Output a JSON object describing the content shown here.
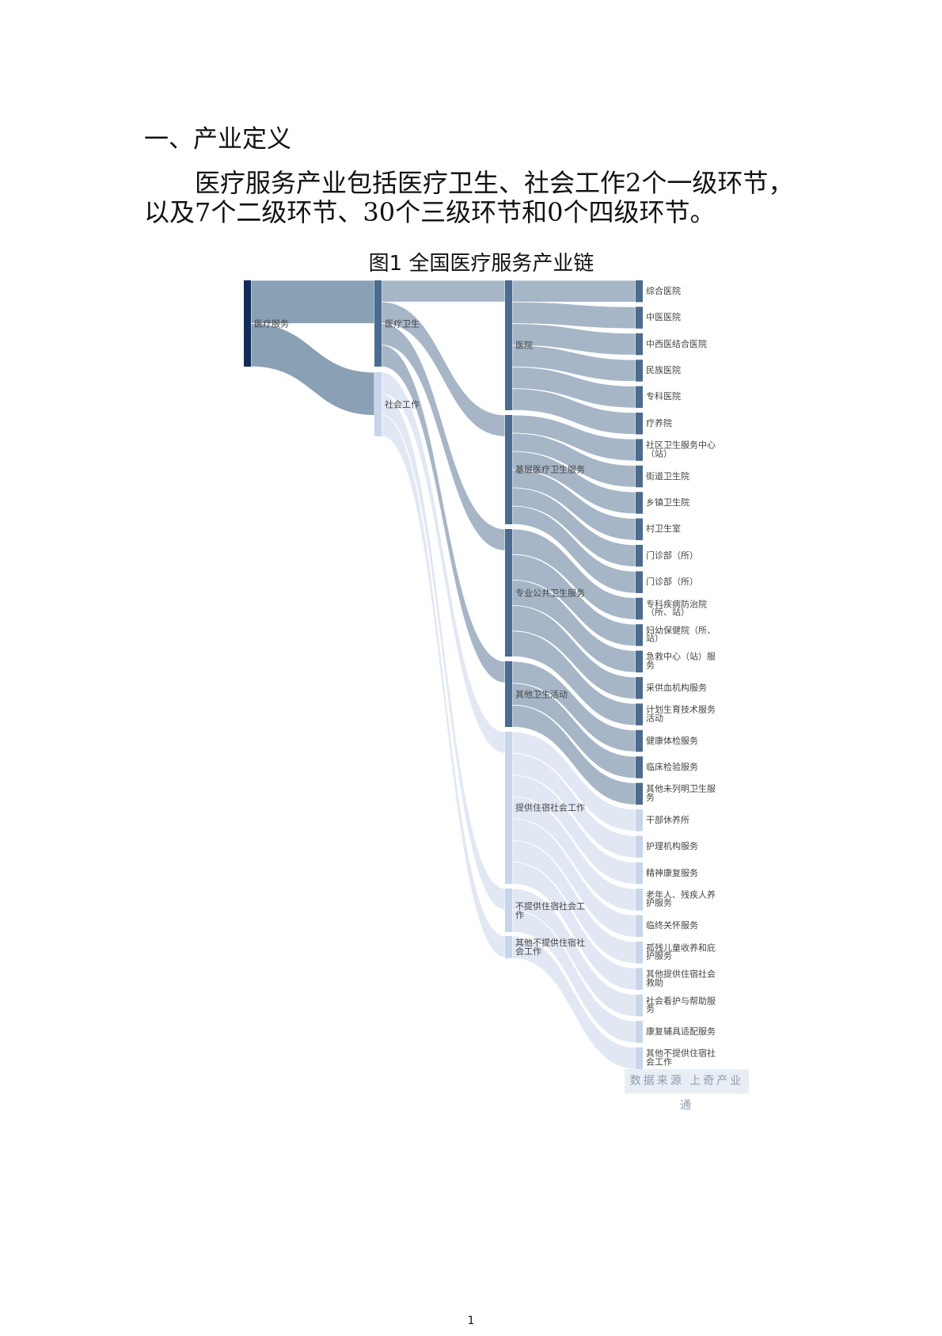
{
  "document": {
    "heading": "一、产业定义",
    "paragraph_line1": "医疗服务产业包括医疗卫生、社会工作2个一级环节，",
    "paragraph_line2": "以及7个二级环节、30个三级环节和0个四级环节。",
    "page_number": "1"
  },
  "chart_data": {
    "type": "sankey",
    "title": "图1 全国医疗服务产业链",
    "source": "数据来源 上奇产业通",
    "colors": {
      "root_node": "#0f2d5c",
      "medical_node": "#4b6c90",
      "social_node": "#c7d6ea",
      "root_flow": "#8aa0b4",
      "medical_flow": "#a6b6c7",
      "social_flow": "#e1e8f4"
    },
    "nodes": [
      {
        "name": "医疗服务",
        "level": 0,
        "parent": null
      },
      {
        "name": "医疗卫生",
        "level": 1,
        "parent": "医疗服务"
      },
      {
        "name": "社会工作",
        "level": 1,
        "parent": "医疗服务"
      },
      {
        "name": "医院",
        "level": 2,
        "parent": "医疗卫生"
      },
      {
        "name": "基层医疗卫生服务",
        "level": 2,
        "parent": "医疗卫生"
      },
      {
        "name": "专业公共卫生服务",
        "level": 2,
        "parent": "医疗卫生"
      },
      {
        "name": "其他卫生活动",
        "level": 2,
        "parent": "医疗卫生"
      },
      {
        "name": "提供住宿社会工作",
        "level": 2,
        "parent": "社会工作"
      },
      {
        "name": "不提供住宿社会工作",
        "level": 2,
        "parent": "社会工作"
      },
      {
        "name": "其他不提供住宿社会工作",
        "level": 2,
        "parent": "社会工作"
      },
      {
        "name": "综合医院",
        "level": 3,
        "parent": "医院"
      },
      {
        "name": "中医医院",
        "level": 3,
        "parent": "医院"
      },
      {
        "name": "中西医结合医院",
        "level": 3,
        "parent": "医院"
      },
      {
        "name": "民族医院",
        "level": 3,
        "parent": "医院"
      },
      {
        "name": "专科医院",
        "level": 3,
        "parent": "医院"
      },
      {
        "name": "疗养院",
        "level": 3,
        "parent": "医院"
      },
      {
        "name": "社区卫生服务中心（站）",
        "level": 3,
        "parent": "基层医疗卫生服务"
      },
      {
        "name": "街道卫生院",
        "level": 3,
        "parent": "基层医疗卫生服务"
      },
      {
        "name": "乡镇卫生院",
        "level": 3,
        "parent": "基层医疗卫生服务"
      },
      {
        "name": "村卫生室",
        "level": 3,
        "parent": "基层医疗卫生服务"
      },
      {
        "name": "门诊部（所）",
        "level": 3,
        "parent": "基层医疗卫生服务"
      },
      {
        "name": "门诊部（所）",
        "level": 3,
        "parent": "基层医疗卫生服务"
      },
      {
        "name": "专科疾病防治院（所、站）",
        "level": 3,
        "parent": "专业公共卫生服务"
      },
      {
        "name": "妇幼保健院（所、站）",
        "level": 3,
        "parent": "专业公共卫生服务"
      },
      {
        "name": "急救中心（站）服务",
        "level": 3,
        "parent": "专业公共卫生服务"
      },
      {
        "name": "采供血机构服务",
        "level": 3,
        "parent": "专业公共卫生服务"
      },
      {
        "name": "计划生育技术服务活动",
        "level": 3,
        "parent": "专业公共卫生服务"
      },
      {
        "name": "健康体检服务",
        "level": 3,
        "parent": "其他卫生活动"
      },
      {
        "name": "临床检验服务",
        "level": 3,
        "parent": "其他卫生活动"
      },
      {
        "name": "其他未列明卫生服务",
        "level": 3,
        "parent": "其他卫生活动"
      },
      {
        "name": "干部休养所",
        "level": 3,
        "parent": "提供住宿社会工作"
      },
      {
        "name": "护理机构服务",
        "level": 3,
        "parent": "提供住宿社会工作"
      },
      {
        "name": "精神康复服务",
        "level": 3,
        "parent": "提供住宿社会工作"
      },
      {
        "name": "老年人、残疾人养护服务",
        "level": 3,
        "parent": "提供住宿社会工作"
      },
      {
        "name": "临终关怀服务",
        "level": 3,
        "parent": "提供住宿社会工作"
      },
      {
        "name": "孤残儿童收养和庇护服务",
        "level": 3,
        "parent": "提供住宿社会工作"
      },
      {
        "name": "其他提供住宿社会救助",
        "level": 3,
        "parent": "提供住宿社会工作"
      },
      {
        "name": "社会看护与帮助服务",
        "level": 3,
        "parent": "不提供住宿社会工作"
      },
      {
        "name": "康复辅具适配服务",
        "level": 3,
        "parent": "不提供住宿社会工作"
      },
      {
        "name": "其他不提供住宿社会工作",
        "level": 3,
        "parent": "其他不提供住宿社会工作"
      }
    ]
  }
}
